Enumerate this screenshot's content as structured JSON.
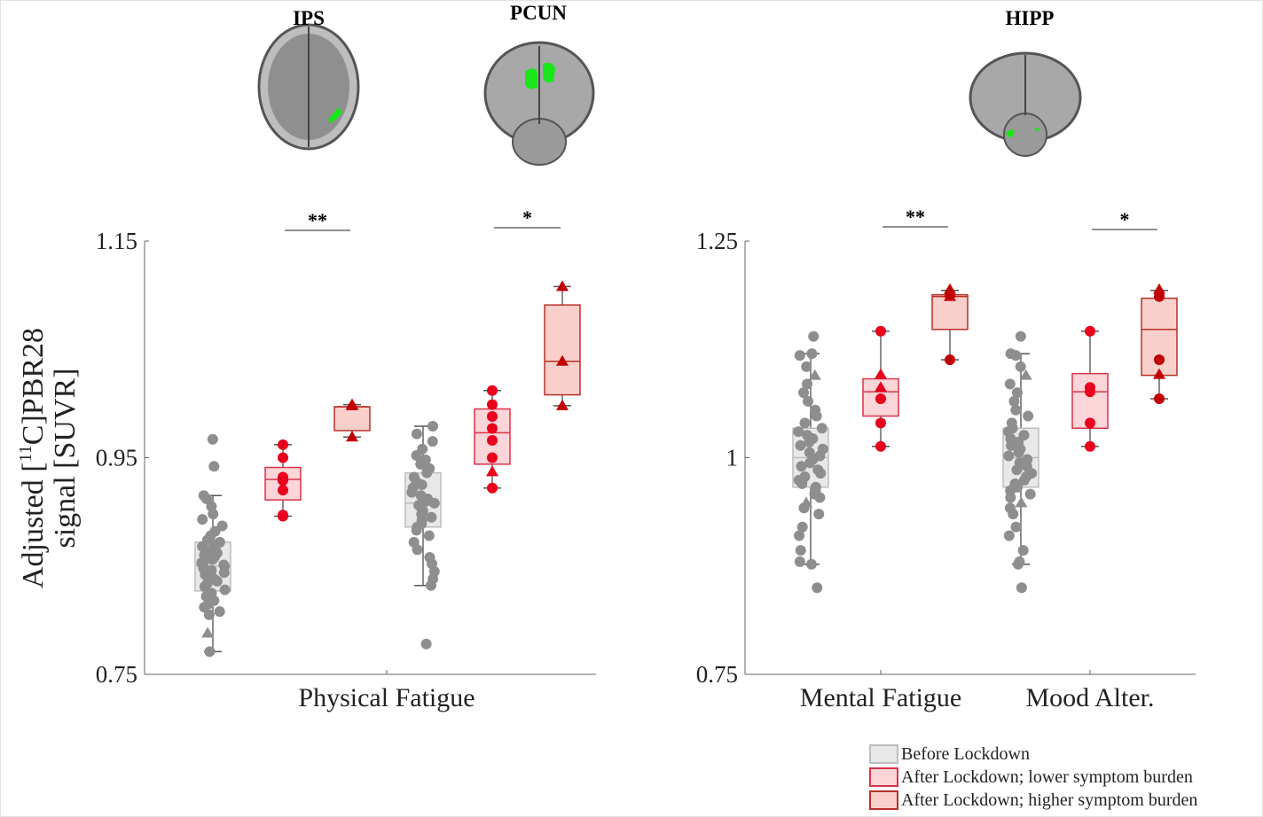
{
  "regions": [
    {
      "label": "IPS",
      "view": "axial"
    },
    {
      "label": "PCUN",
      "view": "coronal"
    },
    {
      "label": "HIPP",
      "view": "coronal"
    }
  ],
  "colors": {
    "before_fill": "#e8e8e8",
    "before_stroke": "#bdbdbd",
    "before_point": "#8e8e8e",
    "lower_fill": "#fcd5d8",
    "lower_stroke": "#d8344a",
    "lower_point": "#e8001c",
    "higher_fill": "#f8cfcb",
    "higher_stroke": "#b83028",
    "higher_point": "#c20000",
    "roi_green": "#19e619"
  },
  "legend": [
    {
      "key": "before",
      "label": "Before Lockdown"
    },
    {
      "key": "lower",
      "label": "After Lockdown; lower symptom burden"
    },
    {
      "key": "higher",
      "label": "After Lockdown; higher symptom burden"
    }
  ],
  "y_axis_label_line1": "Adjusted [",
  "y_axis_label_sup": "11",
  "y_axis_label_line1b": "C]PBR28",
  "y_axis_label_line2": "signal [SUVR]",
  "chart_data": [
    {
      "type": "box",
      "ylim": [
        0.75,
        1.15
      ],
      "yticks": [
        "0.75",
        "0.95",
        "1.15"
      ],
      "ytick_values": [
        0.75,
        0.95,
        1.15
      ],
      "xlabel_ticks": [
        "Physical Fatigue"
      ],
      "significance": [
        {
          "between": [
            1,
            2
          ],
          "label": "**"
        },
        {
          "between": [
            4,
            5
          ],
          "label": "*"
        }
      ],
      "groups": [
        {
          "region": "IPS",
          "group": "before",
          "box": {
            "whisker_low": 0.771,
            "q1": 0.827,
            "median": 0.85,
            "q3": 0.872,
            "whisker_high": 0.915
          },
          "points": [
            0.967,
            0.942,
            0.915,
            0.912,
            0.905,
            0.898,
            0.893,
            0.887,
            0.882,
            0.878,
            0.874,
            0.872,
            0.87,
            0.868,
            0.866,
            0.864,
            0.862,
            0.86,
            0.858,
            0.856,
            0.855,
            0.853,
            0.851,
            0.85,
            0.848,
            0.846,
            0.844,
            0.842,
            0.84,
            0.838,
            0.836,
            0.834,
            0.831,
            0.828,
            0.825,
            0.822,
            0.818,
            0.815,
            0.812,
            0.808,
            0.805,
            0.771
          ],
          "triangles": [
            0.788
          ]
        },
        {
          "region": "IPS",
          "group": "lower",
          "box": {
            "whisker_low": 0.896,
            "q1": 0.911,
            "median": 0.93,
            "q3": 0.941,
            "whisker_high": 0.962
          },
          "points": [
            0.962,
            0.95,
            0.932,
            0.929,
            0.92,
            0.897,
            0.896
          ],
          "triangles": []
        },
        {
          "region": "IPS",
          "group": "higher",
          "box": {
            "whisker_low": 0.969,
            "q1": 0.975,
            "median": 0.997,
            "q3": 0.997,
            "whisker_high": 0.999
          },
          "points": [],
          "triangles": [
            0.999,
            0.998,
            0.969
          ]
        },
        {
          "region": "PCUN",
          "group": "before",
          "box": {
            "whisker_low": 0.832,
            "q1": 0.886,
            "median": 0.908,
            "q3": 0.936,
            "whisker_high": 0.979
          },
          "points": [
            0.979,
            0.972,
            0.965,
            0.958,
            0.952,
            0.948,
            0.944,
            0.94,
            0.936,
            0.932,
            0.928,
            0.925,
            0.922,
            0.918,
            0.915,
            0.912,
            0.91,
            0.908,
            0.906,
            0.904,
            0.901,
            0.898,
            0.895,
            0.892,
            0.889,
            0.886,
            0.883,
            0.878,
            0.872,
            0.865,
            0.858,
            0.852,
            0.845,
            0.838,
            0.832,
            0.778
          ],
          "triangles": []
        },
        {
          "region": "PCUN",
          "group": "lower",
          "box": {
            "whisker_low": 0.922,
            "q1": 0.944,
            "median": 0.973,
            "q3": 0.995,
            "whisker_high": 1.012
          },
          "points": [
            1.012,
            0.999,
            0.988,
            0.977,
            0.966,
            0.95,
            0.922
          ],
          "triangles": [
            0.937
          ]
        },
        {
          "region": "PCUN",
          "group": "higher",
          "box": {
            "whisker_low": 0.998,
            "q1": 1.008,
            "median": 1.039,
            "q3": 1.091,
            "whisker_high": 1.108
          },
          "points": [],
          "triangles": [
            1.108,
            1.039,
            0.998
          ]
        }
      ]
    },
    {
      "type": "box",
      "ylim": [
        0.75,
        1.25
      ],
      "yticks": [
        "0.75",
        "1",
        "1.25"
      ],
      "ytick_values": [
        0.75,
        1.0,
        1.25
      ],
      "xlabel_ticks": [
        "Mental Fatigue",
        "Mood Alter."
      ],
      "significance": [
        {
          "between": [
            1,
            2
          ],
          "label": "**"
        },
        {
          "between": [
            4,
            5
          ],
          "label": "*"
        }
      ],
      "groups": [
        {
          "region": "HIPP",
          "group": "before",
          "box": {
            "whisker_low": 0.877,
            "q1": 0.966,
            "median": 1.0,
            "q3": 1.034,
            "whisker_high": 1.12
          },
          "points": [
            1.14,
            1.12,
            1.118,
            1.105,
            1.085,
            1.075,
            1.065,
            1.055,
            1.048,
            1.04,
            1.034,
            1.03,
            1.026,
            1.022,
            1.018,
            1.014,
            1.01,
            1.006,
            1.002,
            0.998,
            0.994,
            0.99,
            0.986,
            0.982,
            0.978,
            0.974,
            0.97,
            0.966,
            0.962,
            0.958,
            0.954,
            0.942,
            0.935,
            0.92,
            0.91,
            0.893,
            0.88,
            0.877,
            0.85
          ],
          "triangles": [
            1.095,
            0.948
          ]
        },
        {
          "region": "HIPP",
          "group": "lower",
          "box": {
            "whisker_low": 1.013,
            "q1": 1.048,
            "median": 1.076,
            "q3": 1.091,
            "whisker_high": 1.146
          },
          "points": [
            1.146,
            1.068,
            1.04,
            1.013
          ],
          "triangles": [
            1.096,
            1.081
          ]
        },
        {
          "region": "HIPP",
          "group": "higher",
          "box": {
            "whisker_low": 1.113,
            "q1": 1.148,
            "median": 1.186,
            "q3": 1.188,
            "whisker_high": 1.193
          },
          "points": [
            1.113
          ],
          "triangles": [
            1.194,
            1.19,
            1.186
          ]
        },
        {
          "region": "HIPP",
          "group": "before",
          "box": {
            "whisker_low": 0.877,
            "q1": 0.966,
            "median": 1.0,
            "q3": 1.034,
            "whisker_high": 1.12
          },
          "points": [
            1.14,
            1.12,
            1.118,
            1.105,
            1.085,
            1.075,
            1.065,
            1.055,
            1.048,
            1.04,
            1.034,
            1.03,
            1.026,
            1.022,
            1.018,
            1.014,
            1.01,
            1.006,
            1.002,
            0.998,
            0.994,
            0.99,
            0.986,
            0.982,
            0.978,
            0.974,
            0.97,
            0.966,
            0.962,
            0.958,
            0.954,
            0.942,
            0.935,
            0.92,
            0.91,
            0.893,
            0.88,
            0.877,
            0.85
          ],
          "triangles": [
            1.095,
            0.948
          ]
        },
        {
          "region": "HIPP",
          "group": "lower",
          "box": {
            "whisker_low": 1.013,
            "q1": 1.034,
            "median": 1.076,
            "q3": 1.097,
            "whisker_high": 1.146
          },
          "points": [
            1.146,
            1.081,
            1.076,
            1.04,
            1.013
          ],
          "triangles": []
        },
        {
          "region": "HIPP",
          "group": "higher",
          "box": {
            "whisker_low": 1.068,
            "q1": 1.095,
            "median": 1.148,
            "q3": 1.184,
            "whisker_high": 1.193
          },
          "points": [
            1.186,
            1.113,
            1.068
          ],
          "triangles": [
            1.194,
            1.096
          ]
        }
      ]
    }
  ]
}
